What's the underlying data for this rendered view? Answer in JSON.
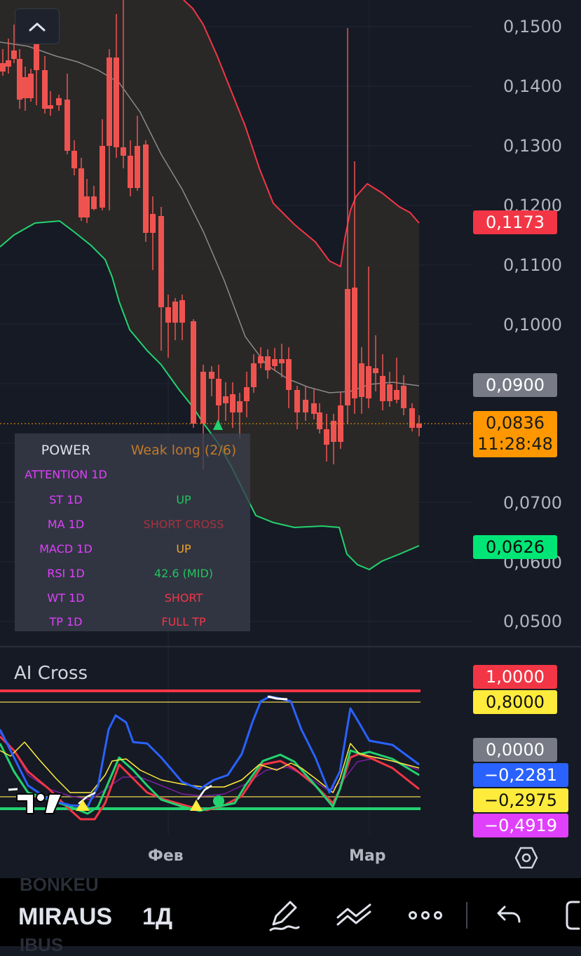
{
  "chart": {
    "price_axis_labels": [
      "0,1500",
      "0,1400",
      "0,1300",
      "0,1200",
      "0,1100",
      "0,1000",
      "0,0700",
      "0,0600",
      "0,0500"
    ],
    "tags": {
      "upper": "0,1173",
      "middle": "0,0900",
      "current_price": "0,0836",
      "countdown": "11:28:48",
      "lower": "0,0626"
    },
    "colors": {
      "up": "#26a69a",
      "down": "#ef5350",
      "upper_band": "#f23645",
      "lower_band": "#22d36f",
      "basis": "#8a8a8a",
      "band_fill": "#2b2a28",
      "tag_red": "#f23645",
      "tag_orange": "#ff9800",
      "tag_green": "#00e676",
      "tag_gray": "#787b86"
    }
  },
  "power": {
    "header_label": "POWER",
    "header_value": "Weak long (2/6)",
    "rows": [
      {
        "label": "ATTENTION 1D",
        "value": ""
      },
      {
        "label": "ST 1D",
        "value": "UP"
      },
      {
        "label": "MA 1D",
        "value": "SHORT CROSS"
      },
      {
        "label": "MACD 1D",
        "value": "UP"
      },
      {
        "label": "RSI 1D",
        "value": "42.6 (MID)"
      },
      {
        "label": "WT 1D",
        "value": "SHORT"
      },
      {
        "label": "TP 1D",
        "value": "FULL TP"
      }
    ]
  },
  "indicator": {
    "title": "AI Cross",
    "tags": [
      "1,0000",
      "0,8000",
      "0,0000",
      "−0,2281",
      "−0,2975",
      "−0,4919"
    ]
  },
  "x_axis": {
    "labels": [
      "Фев",
      "Мар"
    ]
  },
  "bottom_bar": {
    "symbol": "MIRAUS",
    "interval": "1Д",
    "ghost_top": "BONKEU",
    "ghost_bottom": "IBUS"
  },
  "icons": [
    "chevron-up-icon",
    "settings-hexagon-icon",
    "pencil-icon",
    "trend-tools-icon",
    "more-icon",
    "undo-icon",
    "fullscreen-icon",
    "tradingview-logo-icon"
  ]
}
